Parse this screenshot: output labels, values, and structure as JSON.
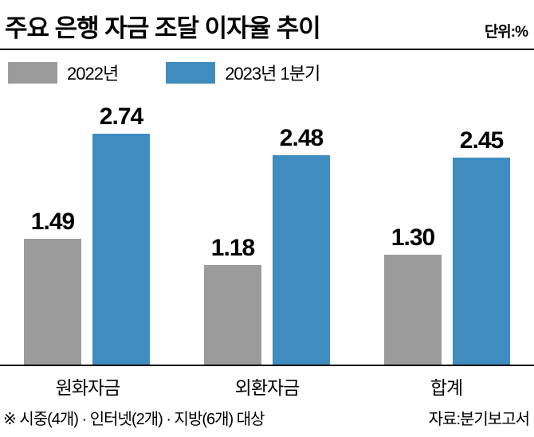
{
  "header": {
    "title": "주요 은행 자금 조달 이자율 추이",
    "unit": "단위:%"
  },
  "legend": {
    "items": [
      {
        "label": "2022년",
        "color": "#9b9b9b"
      },
      {
        "label": "2023년 1분기",
        "color": "#3f8cbe"
      }
    ]
  },
  "chart_data": {
    "type": "bar",
    "title": "주요 은행 자금 조달 이자율 추이",
    "unit": "%",
    "categories": [
      "원화자금",
      "외환자금",
      "합계"
    ],
    "series": [
      {
        "name": "2022년",
        "color": "#9b9b9b",
        "values": [
          1.49,
          1.18,
          1.3
        ],
        "labels": [
          "1.49",
          "1.18",
          "1.30"
        ]
      },
      {
        "name": "2023년 1분기",
        "color": "#3f8cbe",
        "values": [
          2.74,
          2.48,
          2.45
        ],
        "labels": [
          "2.74",
          "2.48",
          "2.45"
        ]
      }
    ],
    "ylim": [
      0,
      3.0
    ],
    "legend_position": "top",
    "grid": false
  },
  "footer": {
    "note": "※ 시중(4개) · 인터넷(2개) · 지방(6개) 대상",
    "source": "자료:분기보고서"
  }
}
